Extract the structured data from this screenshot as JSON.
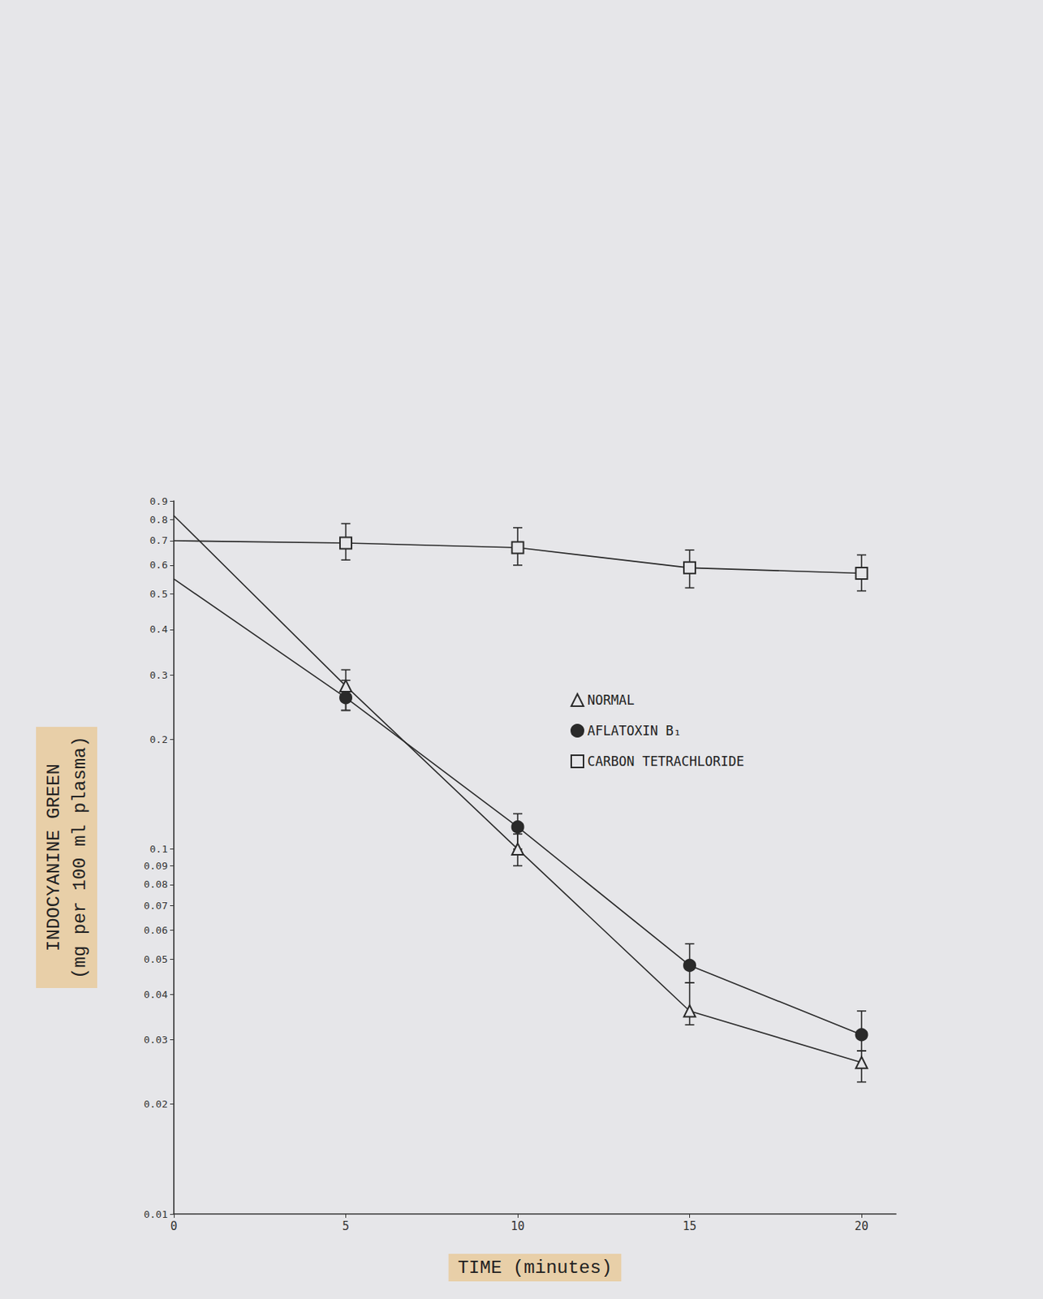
{
  "chart_data": {
    "type": "line",
    "x_label": "TIME (minutes)",
    "y_label": "INDOCYANINE GREEN (mg per 100 ml plasma)",
    "log": "y",
    "grid": false,
    "legend": "right",
    "xlim": [
      0,
      21
    ],
    "xticks": [
      0,
      5,
      10,
      15,
      20
    ],
    "ylim": [
      0.01,
      0.9
    ],
    "yticks": [
      0.01,
      0.02,
      0.03,
      0.04,
      0.05,
      0.06,
      0.07,
      0.08,
      0.09,
      0.1,
      0.2,
      0.3,
      0.4,
      0.5,
      0.6,
      0.7,
      0.8,
      0.9
    ],
    "x": [
      0,
      5,
      10,
      15,
      20
    ],
    "series": [
      {
        "name": "NORMAL",
        "color": "#2a2a2a",
        "marker": "open triangle",
        "values": [
          0.82,
          0.28,
          0.1,
          0.036,
          0.026
        ],
        "error_low": [
          null,
          0.24,
          0.09,
          0.033,
          0.023
        ],
        "error_high": [
          null,
          0.31,
          0.11,
          0.043,
          0.028
        ]
      },
      {
        "name": "AFLATOXIN B₁",
        "color": "#2a2a2a",
        "marker": "filled circle",
        "values": [
          0.55,
          0.26,
          0.115,
          0.048,
          0.031
        ],
        "error_low": [
          null,
          0.24,
          0.1,
          0.043,
          0.028
        ],
        "error_high": [
          null,
          0.29,
          0.125,
          0.055,
          0.036
        ]
      },
      {
        "name": "CARBON TETRACHLORIDE",
        "color": "#2a2a2a",
        "marker": "open square",
        "values": [
          0.7,
          0.69,
          0.67,
          0.59,
          0.57
        ],
        "error_low": [
          null,
          0.62,
          0.6,
          0.52,
          0.51
        ],
        "error_high": [
          null,
          0.78,
          0.76,
          0.66,
          0.64
        ]
      }
    ]
  }
}
